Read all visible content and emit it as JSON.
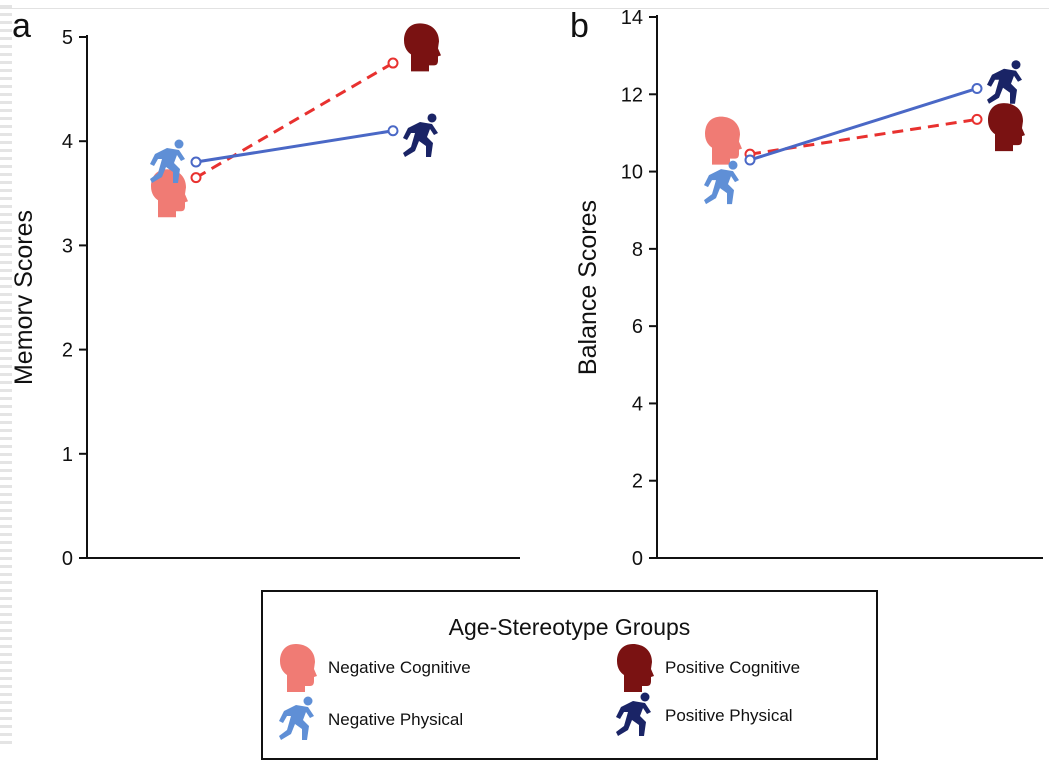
{
  "colors": {
    "negative": "#e8312f",
    "positive": "#4a68c6",
    "negative_cognitive": "#f07b74",
    "positive_cognitive": "#7a1212",
    "negative_physical": "#5f8fd6",
    "positive_physical": "#1a2466"
  },
  "chart_data": [
    {
      "type": "line",
      "panel_label": "a",
      "ylabel": "Memorv Scores",
      "xlabel": "",
      "ylim": [
        0,
        5
      ],
      "yticks": [
        "0",
        "1",
        "2",
        "3",
        "4",
        "5"
      ],
      "x": [
        1,
        2
      ],
      "series": [
        {
          "name": "Negative Cognitive to Positive Cognitive",
          "values": [
            3.65,
            4.75
          ],
          "style": "dashed",
          "color": "#e8312f",
          "start_icon": "head-icon-negative-cognitive",
          "end_icon": "head-icon-positive-cognitive"
        },
        {
          "name": "Negative Physical to Positive Physical",
          "values": [
            3.8,
            4.1
          ],
          "style": "solid",
          "color": "#4a68c6",
          "start_icon": "runner-icon-negative-physical",
          "end_icon": "runner-icon-positive-physical"
        }
      ],
      "markers": [
        {
          "kind": "head",
          "value": 3.5,
          "color": "#f07b74",
          "at": "start",
          "offset": "left"
        },
        {
          "kind": "runner",
          "value": 3.8,
          "color": "#5f8fd6",
          "at": "start",
          "offset": "left"
        },
        {
          "kind": "head",
          "value": 4.9,
          "color": "#7a1212",
          "at": "end",
          "offset": "right"
        },
        {
          "kind": "runner",
          "value": 4.05,
          "color": "#1a2466",
          "at": "end",
          "offset": "right"
        }
      ]
    },
    {
      "type": "line",
      "panel_label": "b",
      "ylabel": "Balance Scores",
      "xlabel": "",
      "ylim": [
        0,
        14
      ],
      "yticks": [
        "0",
        "2",
        "4",
        "6",
        "8",
        "10",
        "12",
        "14"
      ],
      "x": [
        1,
        2
      ],
      "series": [
        {
          "name": "Negative Cognitive to Positive Cognitive",
          "values": [
            10.45,
            11.35
          ],
          "style": "dashed",
          "color": "#e8312f",
          "start_icon": "head-icon-negative-cognitive",
          "end_icon": "head-icon-positive-cognitive"
        },
        {
          "name": "Negative Physical to Positive Physical",
          "values": [
            10.3,
            12.15
          ],
          "style": "solid",
          "color": "#4a68c6",
          "start_icon": "runner-icon-negative-physical",
          "end_icon": "runner-icon-positive-physical"
        }
      ],
      "markers": [
        {
          "kind": "head",
          "value": 10.8,
          "color": "#f07b74",
          "at": "start",
          "offset": "left"
        },
        {
          "kind": "runner",
          "value": 9.7,
          "color": "#5f8fd6",
          "at": "start",
          "offset": "left"
        },
        {
          "kind": "head",
          "value": 11.15,
          "color": "#7a1212",
          "at": "end",
          "offset": "right"
        },
        {
          "kind": "runner",
          "value": 12.3,
          "color": "#1a2466",
          "at": "end",
          "offset": "right"
        }
      ]
    }
  ],
  "legend": {
    "title": "Age-Stereotype Groups",
    "items": [
      {
        "label": "Negative Cognitive",
        "icon": "head-icon",
        "color": "#f07b74"
      },
      {
        "label": "Positive Cognitive",
        "icon": "head-icon",
        "color": "#7a1212"
      },
      {
        "label": "Negative Physical",
        "icon": "runner-icon",
        "color": "#5f8fd6"
      },
      {
        "label": "Positive Physical",
        "icon": "runner-icon",
        "color": "#1a2466"
      }
    ]
  }
}
